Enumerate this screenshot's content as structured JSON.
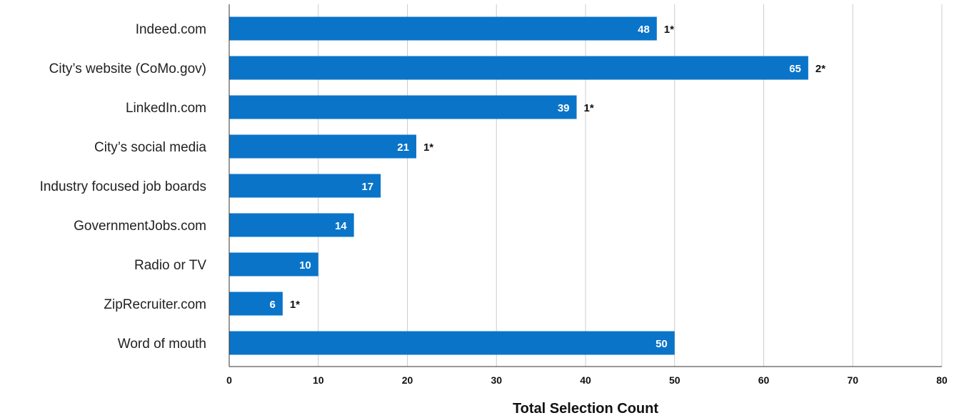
{
  "chart_data": {
    "type": "bar",
    "orientation": "horizontal",
    "categories": [
      "Indeed.com",
      "City’s website (CoMo.gov)",
      "LinkedIn.com",
      "City’s social media",
      "Industry focused job boards",
      "GovernmentJobs.com",
      "Radio or TV",
      "ZipRecruiter.com",
      "Word of mouth"
    ],
    "values": [
      48,
      65,
      39,
      21,
      17,
      14,
      10,
      6,
      50
    ],
    "annotations": [
      "1*",
      "2*",
      "1*",
      "1*",
      "",
      "",
      "",
      "1*",
      ""
    ],
    "xlabel": "Total Selection Count",
    "ylabel": "",
    "xlim": [
      0,
      80
    ],
    "xticks": [
      0,
      10,
      20,
      30,
      40,
      50,
      60,
      70,
      80
    ],
    "grid": true,
    "bar_color": "#0A74C9",
    "grid_color": "#CCCCCC"
  }
}
